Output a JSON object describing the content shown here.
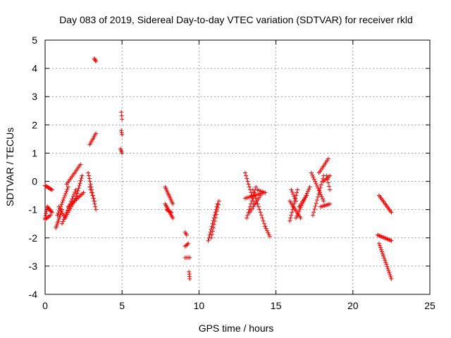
{
  "chart_data": {
    "type": "scatter",
    "title": "Day 083 of 2019, Sidereal Day-to-day VTEC variation (SDTVAR) for receiver rkld",
    "xlabel": "GPS time / hours",
    "ylabel": "SDTVAR / TECUs",
    "xlim": [
      0,
      25
    ],
    "ylim": [
      -4,
      5
    ],
    "xticks": [
      0,
      5,
      10,
      15,
      20,
      25
    ],
    "yticks": [
      -4,
      -3,
      -2,
      -1,
      0,
      1,
      2,
      3,
      4,
      5
    ],
    "grid": true,
    "marker": "+",
    "color": "#ff0000",
    "segments": [
      {
        "x0": 0.0,
        "y0": -1.3,
        "x1": 0.15,
        "y1": -0.9,
        "n": 6
      },
      {
        "x0": 0.15,
        "y0": -0.9,
        "x1": 0.45,
        "y1": -1.1,
        "n": 8
      },
      {
        "x0": 0.0,
        "y0": -0.15,
        "x1": 0.45,
        "y1": -0.3,
        "n": 10
      },
      {
        "x0": 0.0,
        "y0": -1.35,
        "x1": 0.35,
        "y1": -1.2,
        "n": 6
      },
      {
        "x0": 0.7,
        "y0": -1.65,
        "x1": 1.1,
        "y1": -1.0,
        "n": 12
      },
      {
        "x0": 0.8,
        "y0": -1.2,
        "x1": 1.5,
        "y1": -0.2,
        "n": 14
      },
      {
        "x0": 1.1,
        "y0": -1.5,
        "x1": 2.0,
        "y1": -0.3,
        "n": 16
      },
      {
        "x0": 1.3,
        "y0": -1.3,
        "x1": 1.9,
        "y1": -0.7,
        "n": 10
      },
      {
        "x0": 1.4,
        "y0": -0.1,
        "x1": 2.3,
        "y1": 0.6,
        "n": 14
      },
      {
        "x0": 1.5,
        "y0": -0.9,
        "x1": 2.5,
        "y1": -0.4,
        "n": 14
      },
      {
        "x0": 0.9,
        "y0": -0.9,
        "x1": 1.3,
        "y1": -1.3,
        "n": 6
      },
      {
        "x0": 2.0,
        "y0": -0.6,
        "x1": 2.4,
        "y1": 0.2,
        "n": 10
      },
      {
        "x0": 2.8,
        "y0": 0.3,
        "x1": 3.3,
        "y1": -1.0,
        "n": 14
      },
      {
        "x0": 2.9,
        "y0": -0.2,
        "x1": 3.2,
        "y1": -0.7,
        "n": 6
      },
      {
        "x0": 2.9,
        "y0": 1.3,
        "x1": 3.3,
        "y1": 1.7,
        "n": 8
      },
      {
        "x0": 3.2,
        "y0": 4.35,
        "x1": 3.3,
        "y1": 4.25,
        "n": 4
      },
      {
        "x0": 4.95,
        "y0": 2.45,
        "x1": 5.0,
        "y1": 2.2,
        "n": 3
      },
      {
        "x0": 4.95,
        "y0": 1.8,
        "x1": 5.0,
        "y1": 1.65,
        "n": 3
      },
      {
        "x0": 4.9,
        "y0": 1.15,
        "x1": 5.0,
        "y1": 1.0,
        "n": 4
      },
      {
        "x0": 7.8,
        "y0": -0.2,
        "x1": 8.3,
        "y1": -0.8,
        "n": 12
      },
      {
        "x0": 7.8,
        "y0": -0.8,
        "x1": 8.3,
        "y1": -1.3,
        "n": 12
      },
      {
        "x0": 7.9,
        "y0": -1.0,
        "x1": 8.2,
        "y1": -1.1,
        "n": 6
      },
      {
        "x0": 9.1,
        "y0": -1.8,
        "x1": 9.2,
        "y1": -1.9,
        "n": 3
      },
      {
        "x0": 9.1,
        "y0": -2.3,
        "x1": 9.3,
        "y1": -2.2,
        "n": 4
      },
      {
        "x0": 9.1,
        "y0": -2.7,
        "x1": 9.4,
        "y1": -2.7,
        "n": 4
      },
      {
        "x0": 9.35,
        "y0": -3.2,
        "x1": 9.4,
        "y1": -3.45,
        "n": 4
      },
      {
        "x0": 10.6,
        "y0": -2.1,
        "x1": 11.2,
        "y1": -0.8,
        "n": 14
      },
      {
        "x0": 10.8,
        "y0": -2.0,
        "x1": 11.3,
        "y1": -0.7,
        "n": 12
      },
      {
        "x0": 13.0,
        "y0": 0.3,
        "x1": 13.6,
        "y1": -0.8,
        "n": 12
      },
      {
        "x0": 13.1,
        "y0": -1.3,
        "x1": 13.7,
        "y1": -0.2,
        "n": 12
      },
      {
        "x0": 13.0,
        "y0": -0.6,
        "x1": 14.2,
        "y1": -0.4,
        "n": 14
      },
      {
        "x0": 13.5,
        "y0": -0.3,
        "x1": 14.3,
        "y1": -1.6,
        "n": 14
      },
      {
        "x0": 13.3,
        "y0": -1.1,
        "x1": 14.0,
        "y1": -0.5,
        "n": 10
      },
      {
        "x0": 13.8,
        "y0": -0.3,
        "x1": 14.3,
        "y1": -0.4,
        "n": 6
      },
      {
        "x0": 14.3,
        "y0": -1.6,
        "x1": 14.6,
        "y1": -1.95,
        "n": 6
      },
      {
        "x0": 15.9,
        "y0": -0.7,
        "x1": 16.6,
        "y1": -1.3,
        "n": 12
      },
      {
        "x0": 15.9,
        "y0": -1.4,
        "x1": 16.4,
        "y1": -0.3,
        "n": 12
      },
      {
        "x0": 16.3,
        "y0": -1.3,
        "x1": 17.2,
        "y1": -0.2,
        "n": 16
      },
      {
        "x0": 16.5,
        "y0": -0.9,
        "x1": 17.0,
        "y1": -0.5,
        "n": 8
      },
      {
        "x0": 16.0,
        "y0": -0.3,
        "x1": 16.3,
        "y1": -0.7,
        "n": 6
      },
      {
        "x0": 17.3,
        "y0": 0.3,
        "x1": 18.1,
        "y1": -0.7,
        "n": 14
      },
      {
        "x0": 17.4,
        "y0": -1.2,
        "x1": 18.1,
        "y1": 0.2,
        "n": 14
      },
      {
        "x0": 17.8,
        "y0": 0.3,
        "x1": 18.4,
        "y1": 0.8,
        "n": 10
      },
      {
        "x0": 18.1,
        "y0": 0.0,
        "x1": 18.5,
        "y1": 0.2,
        "n": 6
      },
      {
        "x0": 17.9,
        "y0": -0.9,
        "x1": 18.5,
        "y1": -0.8,
        "n": 8
      },
      {
        "x0": 18.3,
        "y0": 0.2,
        "x1": 18.5,
        "y1": -0.3,
        "n": 5
      },
      {
        "x0": 21.7,
        "y0": -0.5,
        "x1": 22.5,
        "y1": -1.1,
        "n": 14
      },
      {
        "x0": 21.6,
        "y0": -1.9,
        "x1": 22.5,
        "y1": -2.1,
        "n": 14
      },
      {
        "x0": 21.7,
        "y0": -2.2,
        "x1": 22.5,
        "y1": -3.45,
        "n": 18
      }
    ]
  }
}
